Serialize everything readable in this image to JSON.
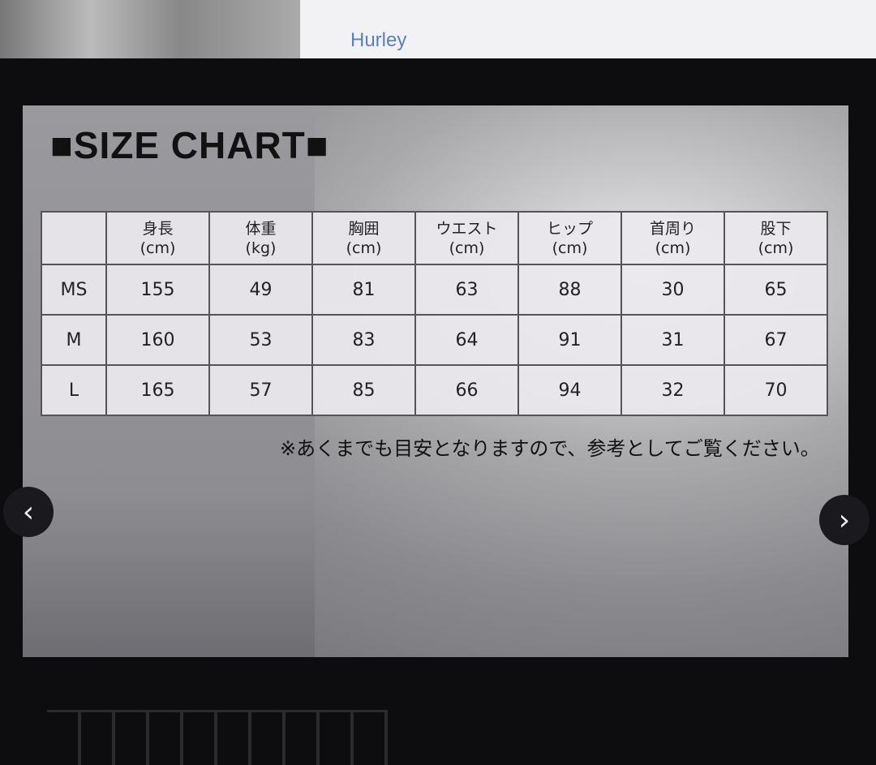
{
  "header": {
    "brand": "Hurley"
  },
  "chart": {
    "title": "■SIZE CHART■",
    "columns": [
      {
        "name": "身長",
        "unit": "(cm)"
      },
      {
        "name": "体重",
        "unit": "(kg)"
      },
      {
        "name": "胸囲",
        "unit": "(cm)"
      },
      {
        "name": "ウエスト",
        "unit": "(cm)"
      },
      {
        "name": "ヒップ",
        "unit": "(cm)"
      },
      {
        "name": "首周り",
        "unit": "(cm)"
      },
      {
        "name": "股下",
        "unit": "(cm)"
      }
    ],
    "rows": [
      {
        "size": "MS",
        "values": [
          "155",
          "49",
          "81",
          "63",
          "88",
          "30",
          "65"
        ]
      },
      {
        "size": "M",
        "values": [
          "160",
          "53",
          "83",
          "64",
          "91",
          "31",
          "67"
        ]
      },
      {
        "size": "L",
        "values": [
          "165",
          "57",
          "85",
          "66",
          "94",
          "32",
          "70"
        ]
      }
    ],
    "note": "※あくまでも目安となりますので、参考としてご覧ください。"
  },
  "nav": {
    "prev_icon": "chevron-left-icon",
    "next_icon": "chevron-right-icon",
    "prev": "‹",
    "next": "›"
  }
}
